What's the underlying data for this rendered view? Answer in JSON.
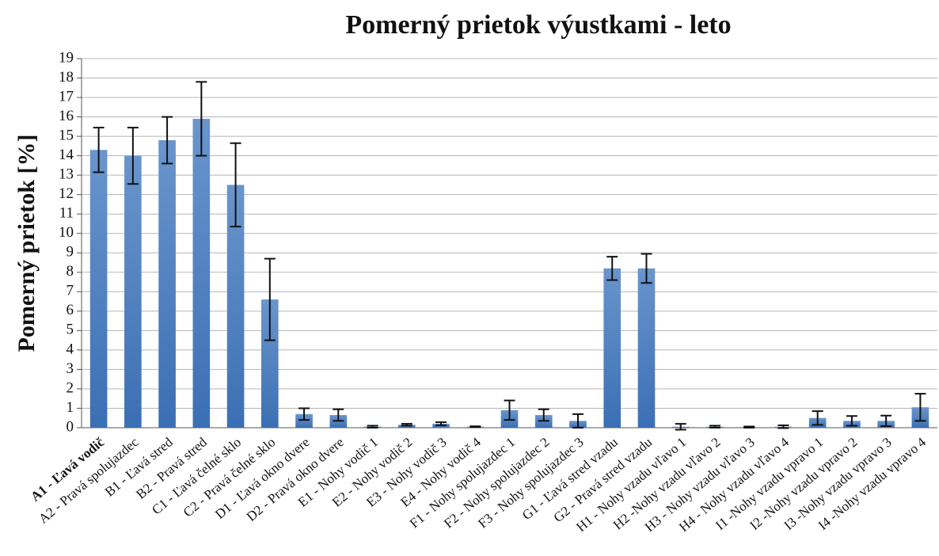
{
  "chart_data": {
    "type": "bar",
    "title": "Pomerný prietok výustkami - leto",
    "y_label": "Pomerný prietok [%]",
    "categories": [
      "A1 - Ľavá vodič",
      "A2 - Pravá spolujazdec",
      "B1 - Ľavá stred",
      "B2 - Pravá stred",
      "C1 - Ľavá čelné sklo",
      "C2 - Pravá čelné sklo",
      "D1 - Ľavá okno dvere",
      "D2 - Pravá okno dvere",
      "E1 - Nohy vodič 1",
      "E2 - Nohy vodič 2",
      "E3 - Nohy vodič 3",
      "E4 - Nohy vodič 4",
      "F1 - Nohy  spolujazdec 1",
      "F2 - Nohy  spolujazdec 2",
      "F3 - Nohy  spolujazdec 3",
      "G1 - Ľavá stred vzadu",
      "G2 - Pravá stred vzadu",
      "H1 - Nohy vzadu vľavo 1",
      "H2 -Nohy vzadu vľavo 2",
      "H3 - Nohy vzadu vľavo 3",
      "H4 - Nohy vzadu vľavo 4",
      "I1 -Nohy vzadu vpravo 1",
      "I2 -Nohy vzadu vpravo 2",
      "I3 -Nohy vzadu vpravo 3",
      "I4 -Nohy vzadu vpravo 4"
    ],
    "values": [
      14.3,
      14.0,
      14.8,
      15.9,
      12.5,
      6.6,
      0.7,
      0.65,
      0.05,
      0.15,
      0.2,
      0.05,
      0.9,
      0.65,
      0.35,
      8.2,
      8.2,
      0.05,
      0.05,
      0.03,
      0.05,
      0.5,
      0.35,
      0.35,
      1.05
    ],
    "errors": [
      1.15,
      1.45,
      1.2,
      1.9,
      2.15,
      2.1,
      0.3,
      0.3,
      0.05,
      0.05,
      0.08,
      0.02,
      0.5,
      0.3,
      0.35,
      0.6,
      0.75,
      0.15,
      0.05,
      0.03,
      0.07,
      0.35,
      0.25,
      0.27,
      0.7
    ],
    "color": "#4a7ebf",
    "ylim": [
      0,
      19
    ],
    "yticks": [
      0,
      1,
      2,
      3,
      4,
      5,
      6,
      7,
      8,
      9,
      10,
      11,
      12,
      13,
      14,
      15,
      16,
      17,
      18,
      19
    ],
    "grid": true
  }
}
